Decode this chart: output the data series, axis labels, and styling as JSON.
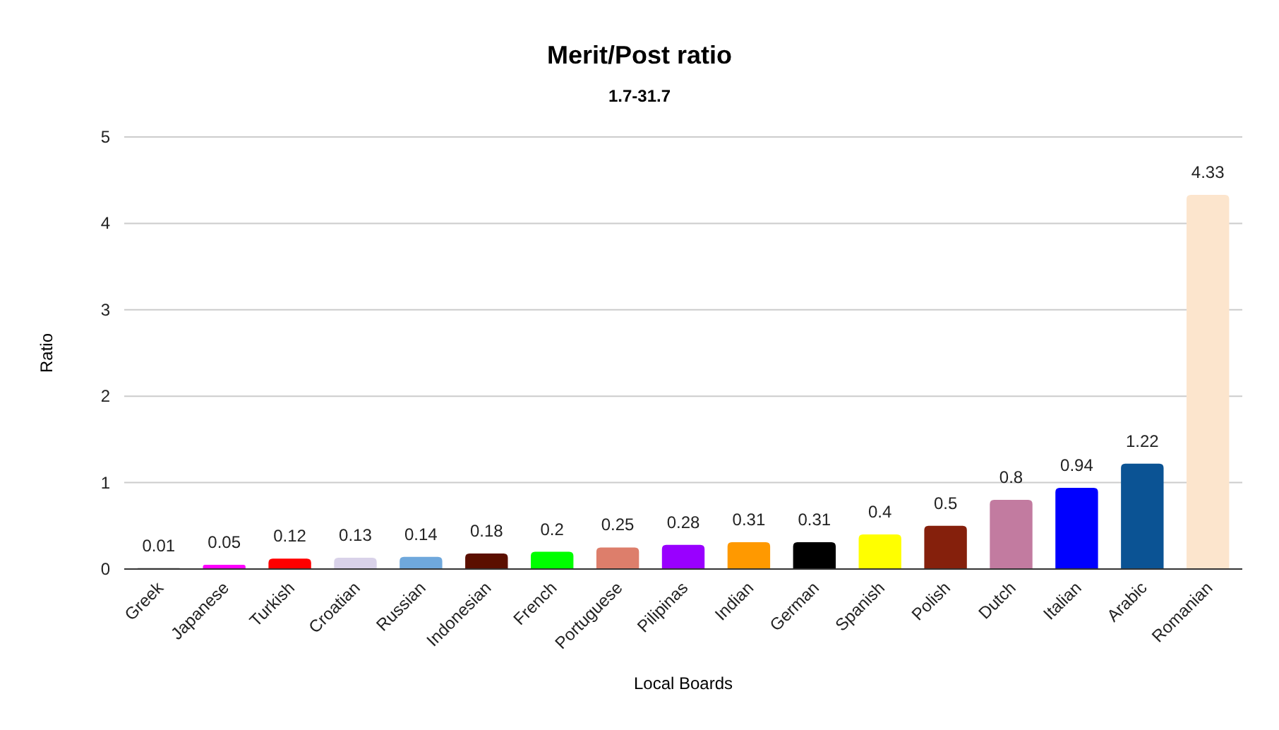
{
  "chart_data": {
    "type": "bar",
    "title": "Merit/Post ratio",
    "subtitle": "1.7-31.7",
    "xlabel": "Local Boards",
    "ylabel": "Ratio",
    "categories": [
      "Greek",
      "Japanese",
      "Turkish",
      "Croatian",
      "Russian",
      "Indonesian",
      "French",
      "Portuguese",
      "Pilipinas",
      "Indian",
      "German",
      "Spanish",
      "Polish",
      "Dutch",
      "Italian",
      "Arabic",
      "Romanian"
    ],
    "values": [
      0.01,
      0.05,
      0.12,
      0.13,
      0.14,
      0.18,
      0.2,
      0.25,
      0.28,
      0.31,
      0.31,
      0.4,
      0.5,
      0.8,
      0.94,
      1.22,
      4.33
    ],
    "colors": [
      "#434343",
      "#ff00ff",
      "#ff0000",
      "#d9d2e9",
      "#6fa8dc",
      "#5b0f00",
      "#00ff00",
      "#dd7e6b",
      "#9900ff",
      "#ff9900",
      "#000000",
      "#ffff00",
      "#85200c",
      "#c27ba0",
      "#0000ff",
      "#0b5394",
      "#fce5cd"
    ],
    "ylim": [
      0,
      5
    ],
    "yticks": [
      0,
      1,
      2,
      3,
      4,
      5
    ],
    "grid": "y",
    "data_labels": true
  }
}
